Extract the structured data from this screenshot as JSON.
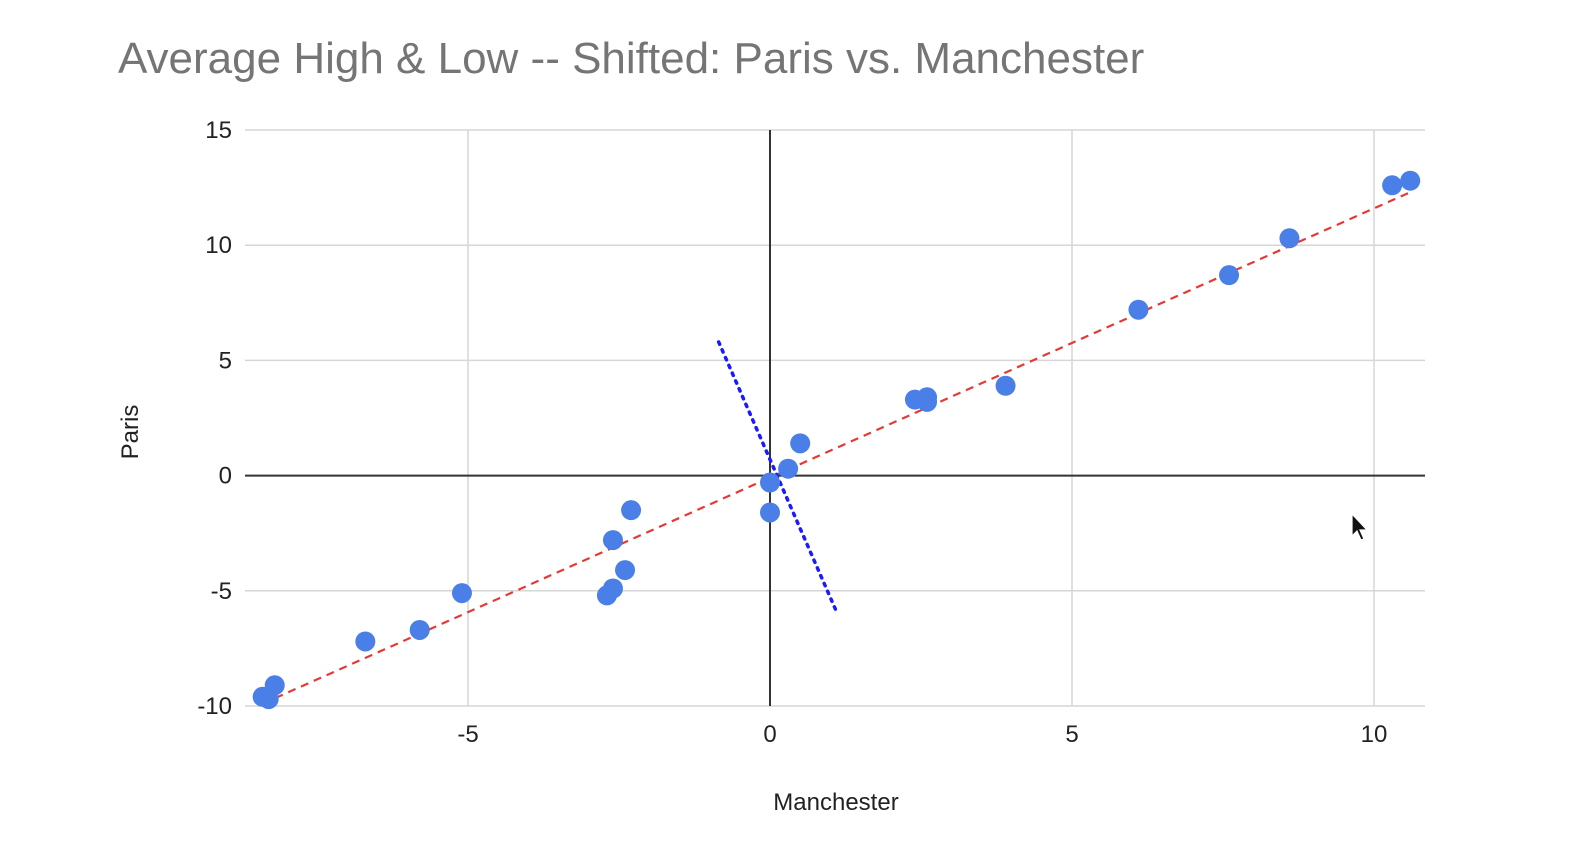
{
  "chart_data": {
    "type": "scatter",
    "title": "Average High & Low -- Shifted: Paris vs. Manchester",
    "xlabel": "Manchester",
    "ylabel": "Paris",
    "xlim": [
      -8.6,
      10.9
    ],
    "ylim": [
      -10,
      15
    ],
    "xticks": [
      -5,
      0,
      5,
      10
    ],
    "yticks": [
      -10,
      -5,
      0,
      5,
      10,
      15
    ],
    "xtick_labels": [
      "-5",
      "0",
      "5",
      "10"
    ],
    "ytick_labels": [
      "-10",
      "-5",
      "0",
      "5",
      "10",
      "15"
    ],
    "grid": true,
    "legend": "none",
    "points": [
      {
        "x": -8.4,
        "y": -9.6
      },
      {
        "x": -8.3,
        "y": -9.7
      },
      {
        "x": -8.2,
        "y": -9.1
      },
      {
        "x": -6.7,
        "y": -7.2
      },
      {
        "x": -5.8,
        "y": -6.7
      },
      {
        "x": -5.1,
        "y": -5.1
      },
      {
        "x": -2.7,
        "y": -5.2
      },
      {
        "x": -2.6,
        "y": -4.9
      },
      {
        "x": -2.4,
        "y": -4.1
      },
      {
        "x": -2.6,
        "y": -2.8
      },
      {
        "x": -2.3,
        "y": -1.5
      },
      {
        "x": 0.0,
        "y": -1.6
      },
      {
        "x": 0.0,
        "y": -0.3
      },
      {
        "x": 0.3,
        "y": 0.3
      },
      {
        "x": 0.5,
        "y": 1.4
      },
      {
        "x": 2.4,
        "y": 3.3
      },
      {
        "x": 2.6,
        "y": 3.4
      },
      {
        "x": 2.6,
        "y": 3.2
      },
      {
        "x": 3.9,
        "y": 3.9
      },
      {
        "x": 6.1,
        "y": 7.2
      },
      {
        "x": 7.6,
        "y": 8.7
      },
      {
        "x": 8.6,
        "y": 10.3
      },
      {
        "x": 10.3,
        "y": 12.6
      },
      {
        "x": 10.6,
        "y": 12.8
      }
    ],
    "trendline": {
      "style": "dashed",
      "color": "#e53935",
      "from": [
        -8.4,
        -9.9
      ],
      "to": [
        10.6,
        12.3
      ]
    },
    "perpendicular_line": {
      "style": "dotted",
      "color": "#1a1aff",
      "from": [
        -0.85,
        5.8
      ],
      "to": [
        1.1,
        -5.9
      ]
    },
    "point_color": "#4a7fe8",
    "grid_color": "#d6d6d6",
    "zero_axis_color": "#333333"
  }
}
